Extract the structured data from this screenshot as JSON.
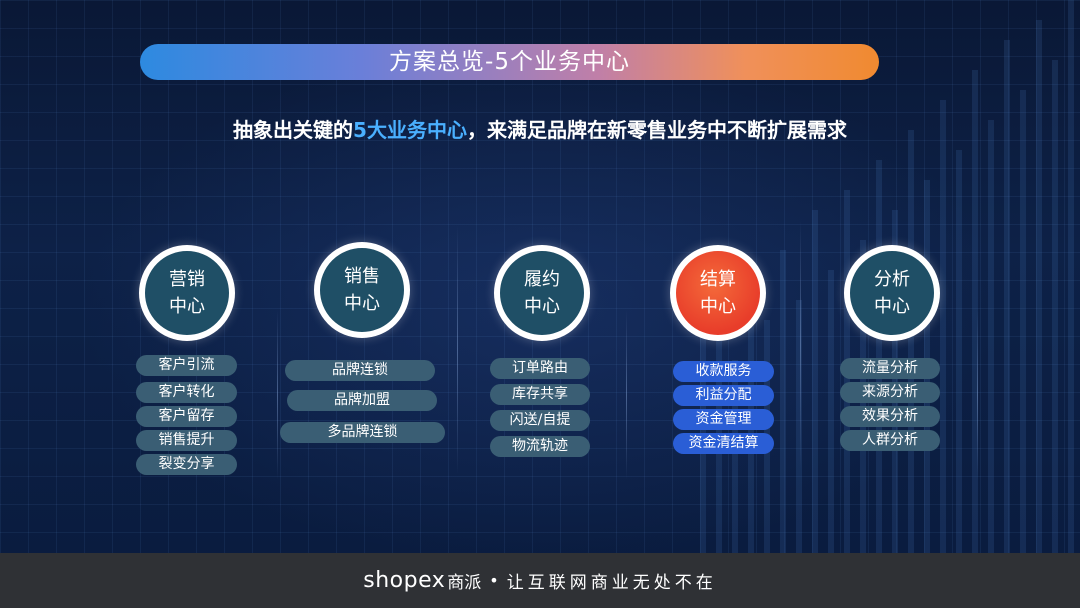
{
  "title": "方案总览-5个业务中心",
  "subtitle": {
    "prefix": "抽象出关键的",
    "highlight": "5大业务中心",
    "suffix": "，来满足品牌在新零售业务中不断扩展需求"
  },
  "centers": [
    {
      "line1": "营销",
      "line2": "中心",
      "items": [
        "客户引流",
        "客户转化",
        "客户留存",
        "销售提升",
        "裂变分享"
      ]
    },
    {
      "line1": "销售",
      "line2": "中心",
      "items": [
        "品牌连锁",
        "品牌加盟",
        "多品牌连锁"
      ]
    },
    {
      "line1": "履约",
      "line2": "中心",
      "items": [
        "订单路由",
        "库存共享",
        "闪送/自提",
        "物流轨迹"
      ]
    },
    {
      "line1": "结算",
      "line2": "中心",
      "items": [
        "收款服务",
        "利益分配",
        "资金管理",
        "资金清结算"
      ]
    },
    {
      "line1": "分析",
      "line2": "中心",
      "items": [
        "流量分析",
        "来源分析",
        "效果分析",
        "人群分析"
      ]
    }
  ],
  "footer": {
    "brand": "shopex",
    "brand_cn": "商派",
    "separator": "•",
    "slogan": "让互联网商业无处不在"
  },
  "colors": {
    "background": "#0b1a3c",
    "highlight_text": "#4ab0ff",
    "pill_default": "#3a5e74",
    "pill_settlement": "#2a5ed6",
    "circle_settlement": "#e83d2a",
    "footer_bg": "#2f3135"
  }
}
